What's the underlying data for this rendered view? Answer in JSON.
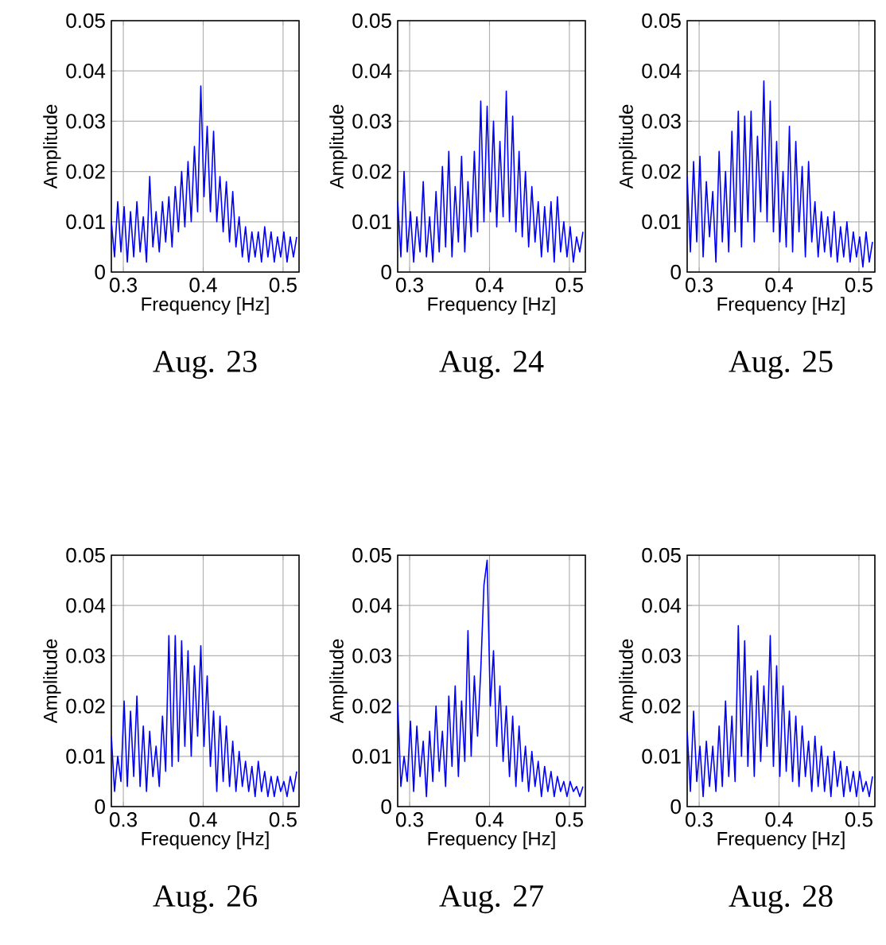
{
  "chart_data": [
    {
      "type": "line",
      "title": "Aug. 23",
      "xlabel": "Frequency [Hz]",
      "ylabel": "Amplitude",
      "color": "#0000ff",
      "grid": true,
      "xlim": [
        0.285,
        0.52
      ],
      "ylim": [
        0,
        0.05
      ],
      "xticks": [
        0.3,
        0.4,
        0.5
      ],
      "yticks": [
        0,
        0.01,
        0.02,
        0.03,
        0.04,
        0.05
      ],
      "x": [
        0.285,
        0.289,
        0.293,
        0.297,
        0.301,
        0.305,
        0.309,
        0.313,
        0.317,
        0.321,
        0.325,
        0.329,
        0.333,
        0.337,
        0.341,
        0.345,
        0.349,
        0.353,
        0.357,
        0.361,
        0.365,
        0.369,
        0.373,
        0.377,
        0.381,
        0.385,
        0.389,
        0.393,
        0.397,
        0.401,
        0.405,
        0.409,
        0.413,
        0.417,
        0.421,
        0.425,
        0.429,
        0.433,
        0.437,
        0.441,
        0.445,
        0.449,
        0.453,
        0.457,
        0.461,
        0.465,
        0.469,
        0.473,
        0.477,
        0.481,
        0.485,
        0.489,
        0.493,
        0.497,
        0.501,
        0.505,
        0.509,
        0.513,
        0.517
      ],
      "values": [
        0.01,
        0.003,
        0.014,
        0.004,
        0.013,
        0.002,
        0.012,
        0.003,
        0.014,
        0.004,
        0.011,
        0.002,
        0.019,
        0.005,
        0.012,
        0.004,
        0.014,
        0.006,
        0.015,
        0.005,
        0.017,
        0.008,
        0.02,
        0.009,
        0.022,
        0.01,
        0.025,
        0.012,
        0.037,
        0.015,
        0.029,
        0.012,
        0.028,
        0.01,
        0.019,
        0.008,
        0.018,
        0.006,
        0.016,
        0.005,
        0.011,
        0.003,
        0.009,
        0.002,
        0.008,
        0.003,
        0.008,
        0.002,
        0.009,
        0.003,
        0.008,
        0.002,
        0.007,
        0.003,
        0.008,
        0.002,
        0.007,
        0.003,
        0.007
      ]
    },
    {
      "type": "line",
      "title": "Aug. 24",
      "xlabel": "Frequency [Hz]",
      "ylabel": "Amplitude",
      "color": "#0000ff",
      "grid": true,
      "xlim": [
        0.285,
        0.52
      ],
      "ylim": [
        0,
        0.05
      ],
      "xticks": [
        0.3,
        0.4,
        0.5
      ],
      "yticks": [
        0,
        0.01,
        0.02,
        0.03,
        0.04,
        0.05
      ],
      "x": [
        0.285,
        0.289,
        0.293,
        0.297,
        0.301,
        0.305,
        0.309,
        0.313,
        0.317,
        0.321,
        0.325,
        0.329,
        0.333,
        0.337,
        0.341,
        0.345,
        0.349,
        0.353,
        0.357,
        0.361,
        0.365,
        0.369,
        0.373,
        0.377,
        0.381,
        0.385,
        0.389,
        0.393,
        0.397,
        0.401,
        0.405,
        0.409,
        0.413,
        0.417,
        0.421,
        0.425,
        0.429,
        0.433,
        0.437,
        0.441,
        0.445,
        0.449,
        0.453,
        0.457,
        0.461,
        0.465,
        0.469,
        0.473,
        0.477,
        0.481,
        0.485,
        0.489,
        0.493,
        0.497,
        0.501,
        0.505,
        0.509,
        0.513,
        0.517
      ],
      "values": [
        0.014,
        0.003,
        0.02,
        0.004,
        0.012,
        0.002,
        0.011,
        0.004,
        0.018,
        0.003,
        0.011,
        0.002,
        0.016,
        0.004,
        0.021,
        0.005,
        0.024,
        0.003,
        0.017,
        0.006,
        0.023,
        0.004,
        0.018,
        0.007,
        0.024,
        0.008,
        0.034,
        0.01,
        0.033,
        0.012,
        0.03,
        0.009,
        0.026,
        0.011,
        0.036,
        0.01,
        0.031,
        0.008,
        0.024,
        0.007,
        0.02,
        0.005,
        0.017,
        0.006,
        0.014,
        0.003,
        0.013,
        0.004,
        0.014,
        0.002,
        0.015,
        0.004,
        0.01,
        0.003,
        0.009,
        0.002,
        0.007,
        0.004,
        0.008
      ]
    },
    {
      "type": "line",
      "title": "Aug. 25",
      "xlabel": "Frequency [Hz]",
      "ylabel": "Amplitude",
      "color": "#0000ff",
      "grid": true,
      "xlim": [
        0.285,
        0.52
      ],
      "ylim": [
        0,
        0.05
      ],
      "xticks": [
        0.3,
        0.4,
        0.5
      ],
      "yticks": [
        0,
        0.01,
        0.02,
        0.03,
        0.04,
        0.05
      ],
      "x": [
        0.285,
        0.289,
        0.293,
        0.297,
        0.301,
        0.305,
        0.309,
        0.313,
        0.317,
        0.321,
        0.325,
        0.329,
        0.333,
        0.337,
        0.341,
        0.345,
        0.349,
        0.353,
        0.357,
        0.361,
        0.365,
        0.369,
        0.373,
        0.377,
        0.381,
        0.385,
        0.389,
        0.393,
        0.397,
        0.401,
        0.405,
        0.409,
        0.413,
        0.417,
        0.421,
        0.425,
        0.429,
        0.433,
        0.437,
        0.441,
        0.445,
        0.449,
        0.453,
        0.457,
        0.461,
        0.465,
        0.469,
        0.473,
        0.477,
        0.481,
        0.485,
        0.489,
        0.493,
        0.497,
        0.501,
        0.505,
        0.509,
        0.513,
        0.517
      ],
      "values": [
        0.019,
        0.004,
        0.022,
        0.006,
        0.023,
        0.003,
        0.018,
        0.007,
        0.016,
        0.002,
        0.024,
        0.006,
        0.02,
        0.004,
        0.028,
        0.008,
        0.032,
        0.005,
        0.031,
        0.01,
        0.032,
        0.006,
        0.027,
        0.012,
        0.038,
        0.01,
        0.034,
        0.008,
        0.026,
        0.006,
        0.02,
        0.005,
        0.029,
        0.004,
        0.026,
        0.008,
        0.021,
        0.003,
        0.022,
        0.006,
        0.014,
        0.003,
        0.012,
        0.004,
        0.011,
        0.003,
        0.012,
        0.002,
        0.009,
        0.003,
        0.01,
        0.002,
        0.008,
        0.003,
        0.007,
        0.001,
        0.008,
        0.002,
        0.006
      ]
    },
    {
      "type": "line",
      "title": "Aug. 26",
      "xlabel": "Frequency [Hz]",
      "ylabel": "Amplitude",
      "color": "#0000ff",
      "grid": true,
      "xlim": [
        0.285,
        0.52
      ],
      "ylim": [
        0,
        0.05
      ],
      "xticks": [
        0.3,
        0.4,
        0.5
      ],
      "yticks": [
        0,
        0.01,
        0.02,
        0.03,
        0.04,
        0.05
      ],
      "x": [
        0.285,
        0.289,
        0.293,
        0.297,
        0.301,
        0.305,
        0.309,
        0.313,
        0.317,
        0.321,
        0.325,
        0.329,
        0.333,
        0.337,
        0.341,
        0.345,
        0.349,
        0.353,
        0.357,
        0.361,
        0.365,
        0.369,
        0.373,
        0.377,
        0.381,
        0.385,
        0.389,
        0.393,
        0.397,
        0.401,
        0.405,
        0.409,
        0.413,
        0.417,
        0.421,
        0.425,
        0.429,
        0.433,
        0.437,
        0.441,
        0.445,
        0.449,
        0.453,
        0.457,
        0.461,
        0.465,
        0.469,
        0.473,
        0.477,
        0.481,
        0.485,
        0.489,
        0.493,
        0.497,
        0.501,
        0.505,
        0.509,
        0.513,
        0.517
      ],
      "values": [
        0.014,
        0.003,
        0.01,
        0.005,
        0.021,
        0.004,
        0.019,
        0.006,
        0.022,
        0.004,
        0.016,
        0.003,
        0.015,
        0.006,
        0.012,
        0.004,
        0.018,
        0.007,
        0.034,
        0.008,
        0.034,
        0.009,
        0.033,
        0.012,
        0.031,
        0.01,
        0.028,
        0.014,
        0.032,
        0.012,
        0.026,
        0.008,
        0.019,
        0.003,
        0.018,
        0.005,
        0.016,
        0.004,
        0.013,
        0.003,
        0.011,
        0.004,
        0.009,
        0.003,
        0.008,
        0.002,
        0.009,
        0.003,
        0.007,
        0.002,
        0.006,
        0.002,
        0.006,
        0.003,
        0.005,
        0.002,
        0.006,
        0.003,
        0.007
      ]
    },
    {
      "type": "line",
      "title": "Aug. 27",
      "xlabel": "Frequency [Hz]",
      "ylabel": "Amplitude",
      "color": "#0000ff",
      "grid": true,
      "xlim": [
        0.285,
        0.52
      ],
      "ylim": [
        0,
        0.05
      ],
      "xticks": [
        0.3,
        0.4,
        0.5
      ],
      "yticks": [
        0,
        0.01,
        0.02,
        0.03,
        0.04,
        0.05
      ],
      "x": [
        0.285,
        0.289,
        0.293,
        0.297,
        0.301,
        0.305,
        0.309,
        0.313,
        0.317,
        0.321,
        0.325,
        0.329,
        0.333,
        0.337,
        0.341,
        0.345,
        0.349,
        0.353,
        0.357,
        0.361,
        0.365,
        0.369,
        0.373,
        0.377,
        0.381,
        0.385,
        0.389,
        0.393,
        0.397,
        0.401,
        0.405,
        0.409,
        0.413,
        0.417,
        0.421,
        0.425,
        0.429,
        0.433,
        0.437,
        0.441,
        0.445,
        0.449,
        0.453,
        0.457,
        0.461,
        0.465,
        0.469,
        0.473,
        0.477,
        0.481,
        0.485,
        0.489,
        0.493,
        0.497,
        0.501,
        0.505,
        0.509,
        0.513,
        0.517
      ],
      "values": [
        0.021,
        0.004,
        0.01,
        0.005,
        0.017,
        0.003,
        0.016,
        0.006,
        0.013,
        0.002,
        0.015,
        0.005,
        0.02,
        0.007,
        0.015,
        0.004,
        0.022,
        0.008,
        0.024,
        0.006,
        0.021,
        0.009,
        0.035,
        0.01,
        0.026,
        0.014,
        0.027,
        0.044,
        0.049,
        0.02,
        0.031,
        0.012,
        0.024,
        0.009,
        0.02,
        0.006,
        0.018,
        0.004,
        0.016,
        0.005,
        0.012,
        0.003,
        0.011,
        0.004,
        0.009,
        0.002,
        0.008,
        0.003,
        0.007,
        0.002,
        0.006,
        0.003,
        0.005,
        0.002,
        0.005,
        0.003,
        0.004,
        0.002,
        0.004
      ]
    },
    {
      "type": "line",
      "title": "Aug. 28",
      "xlabel": "Frequency [Hz]",
      "ylabel": "Amplitude",
      "color": "#0000ff",
      "grid": true,
      "xlim": [
        0.285,
        0.52
      ],
      "ylim": [
        0,
        0.05
      ],
      "xticks": [
        0.3,
        0.4,
        0.5
      ],
      "yticks": [
        0,
        0.01,
        0.02,
        0.03,
        0.04,
        0.05
      ],
      "x": [
        0.285,
        0.289,
        0.293,
        0.297,
        0.301,
        0.305,
        0.309,
        0.313,
        0.317,
        0.321,
        0.325,
        0.329,
        0.333,
        0.337,
        0.341,
        0.345,
        0.349,
        0.353,
        0.357,
        0.361,
        0.365,
        0.369,
        0.373,
        0.377,
        0.381,
        0.385,
        0.389,
        0.393,
        0.397,
        0.401,
        0.405,
        0.409,
        0.413,
        0.417,
        0.421,
        0.425,
        0.429,
        0.433,
        0.437,
        0.441,
        0.445,
        0.449,
        0.453,
        0.457,
        0.461,
        0.465,
        0.469,
        0.473,
        0.477,
        0.481,
        0.485,
        0.489,
        0.493,
        0.497,
        0.501,
        0.505,
        0.509,
        0.513,
        0.517
      ],
      "values": [
        0.015,
        0.003,
        0.019,
        0.005,
        0.012,
        0.002,
        0.013,
        0.004,
        0.012,
        0.003,
        0.016,
        0.004,
        0.021,
        0.006,
        0.018,
        0.005,
        0.036,
        0.01,
        0.033,
        0.008,
        0.026,
        0.006,
        0.027,
        0.009,
        0.024,
        0.012,
        0.034,
        0.008,
        0.028,
        0.006,
        0.024,
        0.007,
        0.019,
        0.005,
        0.018,
        0.004,
        0.016,
        0.006,
        0.013,
        0.003,
        0.014,
        0.004,
        0.012,
        0.003,
        0.01,
        0.002,
        0.011,
        0.004,
        0.009,
        0.002,
        0.008,
        0.003,
        0.007,
        0.002,
        0.007,
        0.003,
        0.005,
        0.002,
        0.006
      ]
    }
  ]
}
